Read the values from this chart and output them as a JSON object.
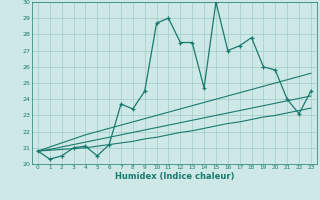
{
  "xlabel": "Humidex (Indice chaleur)",
  "x_values": [
    0,
    1,
    2,
    3,
    4,
    5,
    6,
    7,
    8,
    9,
    10,
    11,
    12,
    13,
    14,
    15,
    16,
    17,
    18,
    19,
    20,
    21,
    22,
    23
  ],
  "main_series": [
    20.8,
    20.3,
    20.5,
    21.0,
    21.1,
    20.5,
    21.2,
    23.7,
    23.4,
    24.5,
    28.7,
    29.0,
    27.5,
    27.5,
    24.7,
    30.0,
    27.0,
    27.3,
    27.8,
    26.0,
    25.8,
    24.0,
    23.1,
    24.5
  ],
  "line1": [
    20.8,
    20.85,
    20.9,
    20.95,
    21.0,
    21.1,
    21.2,
    21.3,
    21.4,
    21.55,
    21.65,
    21.8,
    21.95,
    22.05,
    22.2,
    22.35,
    22.5,
    22.6,
    22.75,
    22.9,
    23.0,
    23.15,
    23.3,
    23.45
  ],
  "line2": [
    20.8,
    20.9,
    21.05,
    21.2,
    21.35,
    21.5,
    21.65,
    21.8,
    21.95,
    22.1,
    22.25,
    22.4,
    22.55,
    22.7,
    22.85,
    23.0,
    23.15,
    23.3,
    23.45,
    23.6,
    23.75,
    23.9,
    24.05,
    24.2
  ],
  "line3": [
    20.8,
    21.05,
    21.3,
    21.55,
    21.8,
    22.0,
    22.2,
    22.4,
    22.6,
    22.8,
    23.0,
    23.2,
    23.4,
    23.6,
    23.8,
    24.0,
    24.2,
    24.4,
    24.6,
    24.8,
    25.0,
    25.2,
    25.4,
    25.6
  ],
  "color": "#1a7a6e",
  "bg_color": "#cde8e6",
  "grid_color": "#a0ccc8",
  "ylim": [
    20,
    30
  ],
  "xlim": [
    -0.5,
    23.5
  ],
  "yticks": [
    20,
    21,
    22,
    23,
    24,
    25,
    26,
    27,
    28,
    29,
    30
  ],
  "xticks": [
    0,
    1,
    2,
    3,
    4,
    5,
    6,
    7,
    8,
    9,
    10,
    11,
    12,
    13,
    14,
    15,
    16,
    17,
    18,
    19,
    20,
    21,
    22,
    23
  ]
}
